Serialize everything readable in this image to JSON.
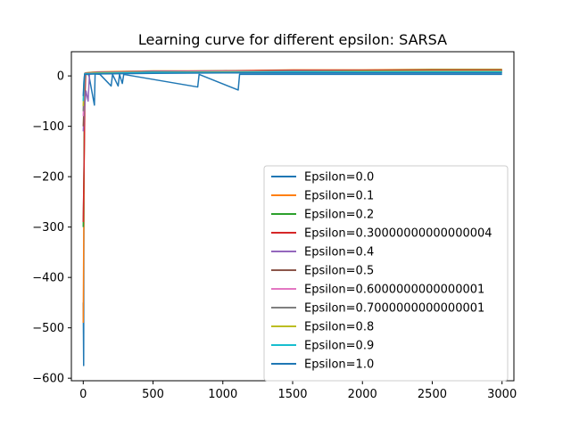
{
  "chart_data": {
    "type": "line",
    "title": "Learning curve for different epsilon: SARSA",
    "xlabel": "",
    "ylabel": "",
    "xlim": [
      -85,
      3085
    ],
    "ylim": [
      -605,
      48
    ],
    "xticks": [
      0,
      500,
      1000,
      1500,
      2000,
      2500,
      3000
    ],
    "yticks": [
      0,
      -100,
      -200,
      -300,
      -400,
      -500,
      -600
    ],
    "xtick_labels": [
      "0",
      "500",
      "1000",
      "1500",
      "2000",
      "2500",
      "3000"
    ],
    "ytick_labels": [
      "0",
      "−100",
      "−200",
      "−300",
      "−400",
      "−500",
      "−600"
    ],
    "grid": false,
    "legend_position": "lower-right",
    "episodes": 3000,
    "series": [
      {
        "name": "Epsilon=0.0",
        "color": "#1f77b4",
        "points": [
          [
            0,
            -450
          ],
          [
            3,
            -575
          ],
          [
            6,
            -120
          ],
          [
            10,
            5
          ],
          [
            20,
            4
          ],
          [
            40,
            2
          ],
          [
            80,
            -58
          ],
          [
            85,
            4
          ],
          [
            120,
            3
          ],
          [
            200,
            -20
          ],
          [
            210,
            3
          ],
          [
            250,
            -20
          ],
          [
            260,
            3
          ],
          [
            280,
            -15
          ],
          [
            290,
            3
          ],
          [
            820,
            -22
          ],
          [
            830,
            3
          ],
          [
            1110,
            -28
          ],
          [
            1120,
            3
          ],
          [
            3000,
            3
          ]
        ]
      },
      {
        "name": "Epsilon=0.1",
        "color": "#ff7f0e",
        "points": [
          [
            0,
            -490
          ],
          [
            4,
            -300
          ],
          [
            8,
            -80
          ],
          [
            14,
            6
          ],
          [
            100,
            8
          ],
          [
            500,
            10
          ],
          [
            1000,
            10
          ],
          [
            1500,
            12
          ],
          [
            2000,
            12
          ],
          [
            2500,
            13
          ],
          [
            3000,
            13
          ]
        ]
      },
      {
        "name": "Epsilon=0.2",
        "color": "#2ca02c",
        "points": [
          [
            0,
            -300
          ],
          [
            5,
            -200
          ],
          [
            10,
            -60
          ],
          [
            16,
            6
          ],
          [
            100,
            7
          ],
          [
            500,
            9
          ],
          [
            1000,
            10
          ],
          [
            1500,
            11
          ],
          [
            2000,
            11
          ],
          [
            2500,
            12
          ],
          [
            3000,
            12
          ]
        ]
      },
      {
        "name": "Epsilon=0.30000000000000004",
        "color": "#d62728",
        "points": [
          [
            0,
            -290
          ],
          [
            6,
            -180
          ],
          [
            12,
            -40
          ],
          [
            18,
            5
          ],
          [
            100,
            7
          ],
          [
            500,
            9
          ],
          [
            1000,
            10
          ],
          [
            1500,
            11
          ],
          [
            2000,
            11
          ],
          [
            2500,
            11
          ],
          [
            3000,
            11
          ]
        ]
      },
      {
        "name": "Epsilon=0.4",
        "color": "#9467bd",
        "points": [
          [
            0,
            -110
          ],
          [
            10,
            -60
          ],
          [
            20,
            -30
          ],
          [
            35,
            -50
          ],
          [
            45,
            5
          ],
          [
            100,
            7
          ],
          [
            500,
            9
          ],
          [
            1000,
            9
          ],
          [
            1500,
            10
          ],
          [
            2000,
            10
          ],
          [
            2500,
            10
          ],
          [
            3000,
            10
          ]
        ]
      },
      {
        "name": "Epsilon=0.5",
        "color": "#8c564b",
        "points": [
          [
            0,
            -100
          ],
          [
            8,
            -40
          ],
          [
            16,
            5
          ],
          [
            100,
            6
          ],
          [
            500,
            8
          ],
          [
            1000,
            9
          ],
          [
            1500,
            9
          ],
          [
            2000,
            10
          ],
          [
            2500,
            10
          ],
          [
            3000,
            10
          ]
        ]
      },
      {
        "name": "Epsilon=0.6000000000000001",
        "color": "#e377c2",
        "points": [
          [
            0,
            -80
          ],
          [
            6,
            -30
          ],
          [
            12,
            5
          ],
          [
            100,
            6
          ],
          [
            500,
            8
          ],
          [
            1000,
            9
          ],
          [
            1500,
            9
          ],
          [
            2000,
            9
          ],
          [
            2500,
            10
          ],
          [
            3000,
            10
          ]
        ]
      },
      {
        "name": "Epsilon=0.7000000000000001",
        "color": "#7f7f7f",
        "points": [
          [
            0,
            -70
          ],
          [
            6,
            -20
          ],
          [
            12,
            4
          ],
          [
            100,
            6
          ],
          [
            500,
            8
          ],
          [
            1000,
            8
          ],
          [
            1500,
            9
          ],
          [
            2000,
            9
          ],
          [
            2500,
            9
          ],
          [
            3000,
            9
          ]
        ]
      },
      {
        "name": "Epsilon=0.8",
        "color": "#bcbd22",
        "points": [
          [
            0,
            -60
          ],
          [
            5,
            -20
          ],
          [
            10,
            4
          ],
          [
            100,
            6
          ],
          [
            500,
            7
          ],
          [
            1000,
            8
          ],
          [
            1500,
            8
          ],
          [
            2000,
            9
          ],
          [
            2500,
            9
          ],
          [
            3000,
            9
          ]
        ]
      },
      {
        "name": "Epsilon=0.9",
        "color": "#17becf",
        "points": [
          [
            0,
            -50
          ],
          [
            5,
            -15
          ],
          [
            10,
            4
          ],
          [
            100,
            5
          ],
          [
            500,
            7
          ],
          [
            1000,
            7
          ],
          [
            1500,
            8
          ],
          [
            2000,
            8
          ],
          [
            2500,
            8
          ],
          [
            3000,
            8
          ]
        ]
      },
      {
        "name": "Epsilon=1.0",
        "color": "#1f77b4",
        "points": [
          [
            0,
            -40
          ],
          [
            5,
            -10
          ],
          [
            10,
            3
          ],
          [
            100,
            4
          ],
          [
            500,
            5
          ],
          [
            1000,
            6
          ],
          [
            1500,
            6
          ],
          [
            2000,
            6
          ],
          [
            2500,
            6
          ],
          [
            3000,
            6
          ]
        ]
      }
    ]
  }
}
